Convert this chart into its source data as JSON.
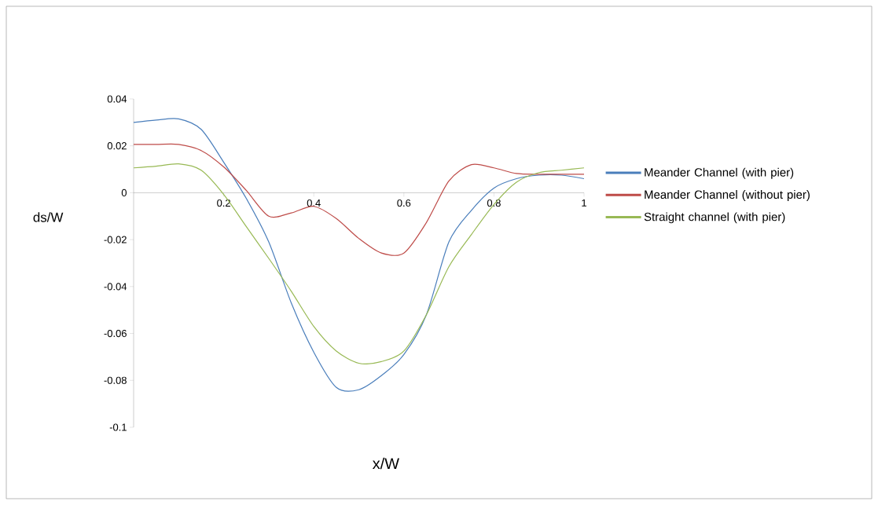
{
  "chart_data": {
    "type": "line",
    "xlabel": "x/W",
    "ylabel": "ds/W",
    "xlim": [
      0,
      1
    ],
    "ylim": [
      -0.1,
      0.04
    ],
    "xticks": [
      0.2,
      0.4,
      0.6,
      0.8,
      1
    ],
    "yticks": [
      -0.1,
      -0.08,
      -0.06,
      -0.04,
      -0.02,
      0,
      0.02,
      0.04
    ],
    "legend": "right",
    "x": [
      0,
      0.05,
      0.1,
      0.15,
      0.2,
      0.25,
      0.3,
      0.35,
      0.4,
      0.45,
      0.5,
      0.55,
      0.6,
      0.65,
      0.7,
      0.75,
      0.8,
      0.85,
      0.9,
      0.95,
      1
    ],
    "series": [
      {
        "name": "Meander Channel (with pier)",
        "color": "#4a7ebb",
        "values": [
          0.03,
          0.031,
          0.0315,
          0.027,
          0.013,
          -0.0024,
          -0.021,
          -0.047,
          -0.068,
          -0.083,
          -0.084,
          -0.078,
          -0.069,
          -0.052,
          -0.021,
          -0.0075,
          0.002,
          0.006,
          0.0075,
          0.0075,
          0.006
        ]
      },
      {
        "name": "Meander Channel (without pier)",
        "color": "#be4b48",
        "values": [
          0.0206,
          0.0206,
          0.0206,
          0.018,
          0.011,
          0.001,
          -0.01,
          -0.0086,
          -0.0058,
          -0.011,
          -0.0195,
          -0.0257,
          -0.0257,
          -0.0127,
          0.005,
          0.012,
          0.0106,
          0.0082,
          0.0079,
          0.0079,
          0.0079
        ]
      },
      {
        "name": "Straight channel (with pier)",
        "color": "#98b954",
        "values": [
          0.0106,
          0.0113,
          0.0123,
          0.0096,
          -0.0007,
          -0.0144,
          -0.028,
          -0.042,
          -0.057,
          -0.0675,
          -0.0727,
          -0.072,
          -0.0675,
          -0.052,
          -0.0315,
          -0.0178,
          -0.005,
          0.0045,
          0.0086,
          0.0096,
          0.0106
        ]
      }
    ]
  }
}
